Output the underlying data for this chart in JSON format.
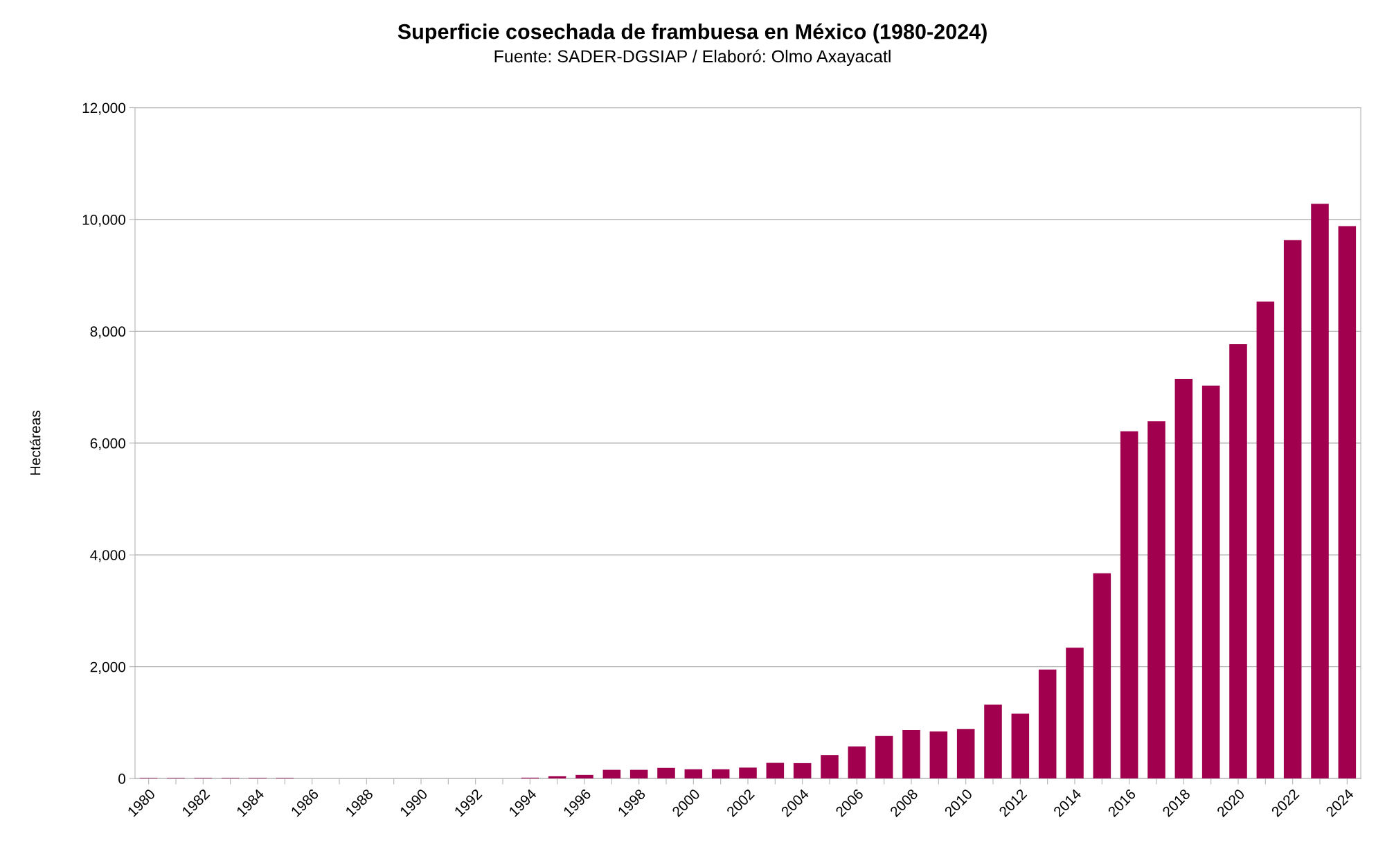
{
  "chart_data": {
    "type": "bar",
    "title": "Superficie cosechada de frambuesa en México (1980-2024)",
    "subtitle": "Fuente: SADER-DGSIAP / Elaboró: Olmo Axayacatl",
    "ylabel": "Hectáreas",
    "categories": [
      "1980",
      null,
      "1982",
      null,
      "1984",
      null,
      "1986",
      null,
      "1988",
      null,
      "1990",
      null,
      "1992",
      null,
      "1994",
      null,
      "1996",
      null,
      "1998",
      null,
      "2000",
      null,
      "2002",
      null,
      "2004",
      null,
      "2006",
      null,
      "2008",
      null,
      "2010",
      null,
      "2012",
      null,
      "2014",
      null,
      "2016",
      null,
      "2018",
      null,
      "2020",
      null,
      "2022",
      null,
      "2024"
    ],
    "values": [
      10,
      10,
      10,
      10,
      10,
      10,
      0,
      0,
      0,
      0,
      0,
      0,
      0,
      0,
      15,
      40,
      65,
      155,
      155,
      190,
      165,
      165,
      195,
      280,
      275,
      420,
      575,
      760,
      870,
      840,
      885,
      1320,
      1160,
      1950,
      2340,
      3670,
      6210,
      6390,
      7150,
      7030,
      7770,
      8530,
      9630,
      10280,
      9880
    ],
    "color": "#a0004e",
    "ylim": [
      0,
      12000
    ],
    "yticks": [
      0,
      {
        "value": 2000,
        "label": "2,000"
      },
      {
        "value": 4000,
        "label": "4,000"
      },
      {
        "value": 6000,
        "label": "6,000"
      },
      {
        "value": 8000,
        "label": "8,000"
      },
      {
        "value": 10000,
        "label": "10,000"
      },
      {
        "value": 12000,
        "label": "12,000"
      }
    ],
    "grid": "y",
    "legend": false
  }
}
